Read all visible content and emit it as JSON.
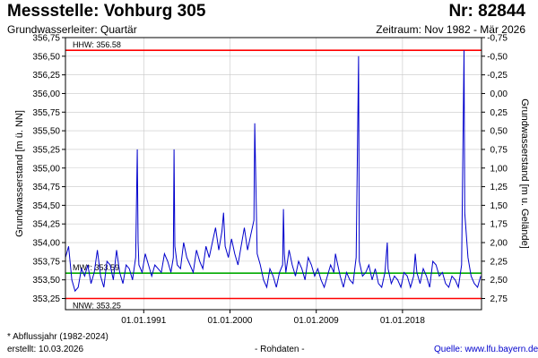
{
  "header": {
    "title": "Messstelle: Vohburg 305",
    "number": "Nr: 82844",
    "aquifer": "Grundwasserleiter: Quartär",
    "period": "Zeitraum: Nov 1982 - Mär 2026"
  },
  "footer": {
    "footnote": "* Abflussjahr (1982-2024)",
    "created": "erstellt:  10.03.2026",
    "rawdata": "- Rohdaten -",
    "source": "Quelle: www.lfu.bayern.de"
  },
  "colors": {
    "series": "#0000cc",
    "reference_extreme": "#ff0000",
    "reference_mean": "#00aa00",
    "grid": "#c8c8c8"
  },
  "chart_data": {
    "type": "line",
    "ylabel": "Grundwasserstand [m ü. NN]",
    "y2label": "Grundwasserstand [m u. Gelände]",
    "ylim": [
      353.1,
      356.75
    ],
    "xlim": [
      "1982-11-01",
      "2026-03-31"
    ],
    "y_ticks": [
      "353,25",
      "353,50",
      "353,75",
      "354,00",
      "354,25",
      "354,50",
      "354,75",
      "355,00",
      "355,25",
      "355,50",
      "355,75",
      "356,00",
      "356,25",
      "356,50",
      "356,75"
    ],
    "y2_ticks": [
      "-0,75",
      "-0,50",
      "-0,25",
      "0,00",
      "0,25",
      "0,50",
      "0,75",
      "1,00",
      "1,25",
      "1,50",
      "1,75",
      "2,00",
      "2,25",
      "2,50",
      "2,75"
    ],
    "x_ticks": [
      {
        "date": "1991-01-01",
        "label": "01.01.1991"
      },
      {
        "date": "2000-01-01",
        "label": "01.01.2000"
      },
      {
        "date": "2009-01-01",
        "label": "01.01.2009"
      },
      {
        "date": "2018-01-01",
        "label": "01.01.2018"
      }
    ],
    "grid": true,
    "reference_lines": [
      {
        "label": "HHW: 356.58",
        "value": 356.58,
        "kind": "extreme"
      },
      {
        "label": "MW*: 353.59",
        "value": 353.59,
        "kind": "mean"
      },
      {
        "label": "NNW: 353.25",
        "value": 353.25,
        "kind": "extreme"
      }
    ],
    "series": [
      {
        "x": [
          "1982-11-01",
          "1983-03-01",
          "1983-07-01",
          "1983-11-01",
          "1984-03-01",
          "1984-07-01",
          "1984-11-01",
          "1985-03-01",
          "1985-07-01",
          "1985-11-01",
          "1986-03-01",
          "1986-07-01",
          "1986-11-01",
          "1987-03-01",
          "1987-07-01",
          "1987-11-01",
          "1988-03-01",
          "1988-07-01",
          "1988-11-01",
          "1989-03-01",
          "1989-07-01",
          "1989-11-01",
          "1990-03-01",
          "1990-05-01",
          "1990-06-01",
          "1990-07-01",
          "1990-11-01",
          "1991-03-01",
          "1991-07-01",
          "1991-11-01",
          "1992-03-01",
          "1992-07-01",
          "1992-11-01",
          "1993-03-01",
          "1993-07-01",
          "1993-11-01",
          "1994-02-01",
          "1994-03-01",
          "1994-04-01",
          "1994-07-01",
          "1994-11-01",
          "1995-03-01",
          "1995-07-01",
          "1995-11-01",
          "1996-03-01",
          "1996-07-01",
          "1996-11-01",
          "1997-03-01",
          "1997-07-01",
          "1997-11-01",
          "1998-03-01",
          "1998-07-01",
          "1998-11-01",
          "1999-03-01",
          "1999-05-01",
          "1999-07-01",
          "1999-11-01",
          "2000-03-01",
          "2000-07-01",
          "2000-11-01",
          "2001-03-01",
          "2001-07-01",
          "2001-11-01",
          "2002-03-01",
          "2002-07-01",
          "2002-08-01",
          "2002-11-01",
          "2003-03-01",
          "2003-07-01",
          "2003-11-01",
          "2004-03-01",
          "2004-07-01",
          "2004-11-01",
          "2005-03-01",
          "2005-07-01",
          "2005-08-01",
          "2005-09-01",
          "2005-11-01",
          "2006-03-01",
          "2006-07-01",
          "2006-11-01",
          "2007-03-01",
          "2007-07-01",
          "2007-11-01",
          "2008-03-01",
          "2008-07-01",
          "2008-11-01",
          "2009-03-01",
          "2009-07-01",
          "2009-11-01",
          "2010-03-01",
          "2010-07-01",
          "2010-11-01",
          "2011-01-01",
          "2011-03-01",
          "2011-07-01",
          "2011-11-01",
          "2012-03-01",
          "2012-07-01",
          "2012-11-01",
          "2013-03-01",
          "2013-06-01",
          "2013-07-01",
          "2013-11-01",
          "2014-03-01",
          "2014-07-01",
          "2014-11-01",
          "2015-03-01",
          "2015-07-01",
          "2015-11-01",
          "2016-03-01",
          "2016-06-01",
          "2016-07-01",
          "2016-11-01",
          "2017-03-01",
          "2017-07-01",
          "2017-11-01",
          "2018-03-01",
          "2018-07-01",
          "2018-11-01",
          "2019-03-01",
          "2019-05-01",
          "2019-07-01",
          "2019-11-01",
          "2020-03-01",
          "2020-07-01",
          "2020-11-01",
          "2021-03-01",
          "2021-07-01",
          "2021-11-01",
          "2022-03-01",
          "2022-07-01",
          "2022-11-01",
          "2023-03-01",
          "2023-07-01",
          "2023-11-01",
          "2024-03-01",
          "2024-06-01",
          "2024-07-01",
          "2024-11-01",
          "2025-03-01",
          "2025-07-01",
          "2025-11-01",
          "2026-03-01"
        ],
        "y": [
          353.8,
          353.95,
          353.5,
          353.35,
          353.4,
          353.65,
          353.55,
          353.7,
          353.45,
          353.6,
          353.9,
          353.55,
          353.4,
          353.75,
          353.7,
          353.5,
          353.9,
          353.6,
          353.45,
          353.7,
          353.65,
          353.5,
          353.8,
          355.25,
          354.0,
          353.7,
          353.6,
          353.85,
          353.7,
          353.55,
          353.7,
          353.65,
          353.6,
          353.85,
          353.75,
          353.6,
          353.8,
          355.25,
          353.95,
          353.7,
          353.65,
          354.0,
          353.8,
          353.7,
          353.6,
          353.9,
          353.75,
          353.65,
          353.95,
          353.8,
          354.0,
          354.2,
          353.9,
          354.15,
          354.4,
          353.95,
          353.8,
          354.05,
          353.85,
          353.7,
          353.95,
          354.2,
          353.9,
          354.1,
          354.3,
          355.6,
          353.85,
          353.7,
          353.5,
          353.4,
          353.65,
          353.55,
          353.4,
          353.6,
          353.7,
          354.45,
          353.85,
          353.6,
          353.9,
          353.7,
          353.55,
          353.75,
          353.65,
          353.5,
          353.8,
          353.7,
          353.55,
          353.65,
          353.5,
          353.4,
          353.55,
          353.7,
          353.6,
          353.85,
          353.75,
          353.55,
          353.4,
          353.6,
          353.5,
          353.45,
          353.8,
          356.5,
          353.75,
          353.55,
          353.6,
          353.7,
          353.5,
          353.65,
          353.45,
          353.4,
          353.6,
          354.0,
          353.65,
          353.45,
          353.55,
          353.5,
          353.4,
          353.6,
          353.55,
          353.4,
          353.55,
          353.85,
          353.6,
          353.45,
          353.65,
          353.55,
          353.4,
          353.75,
          353.7,
          353.55,
          353.6,
          353.45,
          353.4,
          353.55,
          353.5,
          353.4,
          353.7,
          356.58,
          354.4,
          353.8,
          353.55,
          353.45,
          353.4,
          353.55
        ]
      }
    ]
  }
}
